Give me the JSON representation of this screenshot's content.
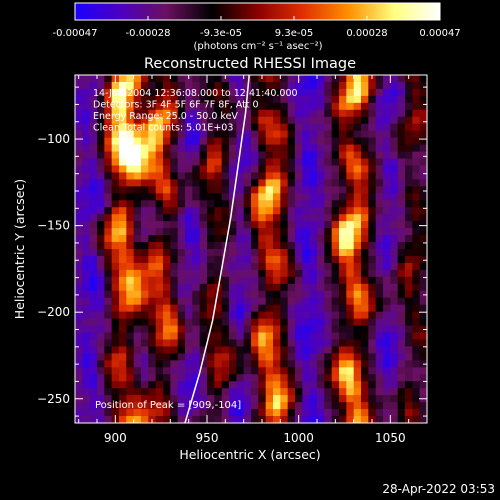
{
  "chart_data": {
    "type": "heatmap",
    "title": "Reconstructed RHESSI Image",
    "xlabel": "Heliocentric X (arcsec)",
    "ylabel": "Heliocentric Y (arcsec)",
    "xlim": [
      878,
      1070
    ],
    "ylim": [
      -264,
      -63
    ],
    "x_ticks": [
      900,
      950,
      1000,
      1050
    ],
    "y_ticks": [
      -250,
      -200,
      -150,
      -100
    ],
    "colorbar": {
      "ticks": [
        "-0.00047",
        "-0.00028",
        "-9.3e-05",
        "9.3e-05",
        "0.00028",
        "0.00047"
      ],
      "range": [
        -0.00047,
        0.00047
      ],
      "units_label": "(photons cm⁻² s⁻¹ asec⁻²)",
      "colors": [
        "#1a00ff",
        "#4c00c0",
        "#6a1060",
        "#000000",
        "#8a0000",
        "#e03000",
        "#ff9000",
        "#ffff80",
        "#ffffff"
      ]
    },
    "annotations": [
      "14-Jan-2004 12:36:08.000 to 12:41:40.000",
      "Detectors: 3F 4F 5F 6F 7F 8F, Att 0",
      "Energy Range: 25.0 - 50.0 keV",
      "Clean     Total counts: 5.01E+03"
    ],
    "peak_label": "Position of Peak = [909,-104]",
    "peak": [
      909,
      -104
    ],
    "limb_curve": [
      [
        938,
        -264
      ],
      [
        946,
        -235
      ],
      [
        953,
        -205
      ],
      [
        958,
        -175
      ],
      [
        963,
        -145
      ],
      [
        967,
        -115
      ],
      [
        971,
        -85
      ],
      [
        973,
        -63
      ]
    ],
    "image": {
      "grid": [
        48,
        50
      ],
      "ridge_x": [
        905,
        925,
        955,
        985,
        1030,
        1062
      ],
      "trough_x": [
        888,
        915,
        942,
        968,
        1005,
        1050
      ],
      "ridge_amplitude": [
        0.95,
        0.75,
        0.55,
        0.9,
        1.0,
        0.45
      ]
    }
  },
  "footer": {
    "timestamp": "28-Apr-2022 03:53"
  }
}
